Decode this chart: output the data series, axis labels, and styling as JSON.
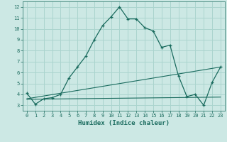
{
  "xlabel": "Humidex (Indice chaleur)",
  "background_color": "#cce8e4",
  "grid_color": "#aad4ce",
  "line_color": "#1a6b5e",
  "xlim": [
    -0.5,
    23.5
  ],
  "ylim": [
    2.5,
    12.5
  ],
  "xticks": [
    0,
    1,
    2,
    3,
    4,
    5,
    6,
    7,
    8,
    9,
    10,
    11,
    12,
    13,
    14,
    15,
    16,
    17,
    18,
    19,
    20,
    21,
    22,
    23
  ],
  "yticks": [
    3,
    4,
    5,
    6,
    7,
    8,
    9,
    10,
    11,
    12
  ],
  "line1_x": [
    0,
    1,
    2,
    3,
    4,
    5,
    6,
    7,
    8,
    9,
    10,
    11,
    12,
    13,
    14,
    15,
    16,
    17,
    18,
    19,
    20,
    21,
    22,
    23
  ],
  "line1_y": [
    4.1,
    3.1,
    3.6,
    3.7,
    4.0,
    5.5,
    6.5,
    7.5,
    9.0,
    10.3,
    11.1,
    12.0,
    10.9,
    10.9,
    10.1,
    9.8,
    8.3,
    8.5,
    5.7,
    3.8,
    4.0,
    3.0,
    5.1,
    6.5
  ],
  "line2_x": [
    0,
    23
  ],
  "line2_y": [
    3.6,
    6.5
  ],
  "line3_x": [
    0,
    23
  ],
  "line3_y": [
    3.55,
    3.75
  ]
}
